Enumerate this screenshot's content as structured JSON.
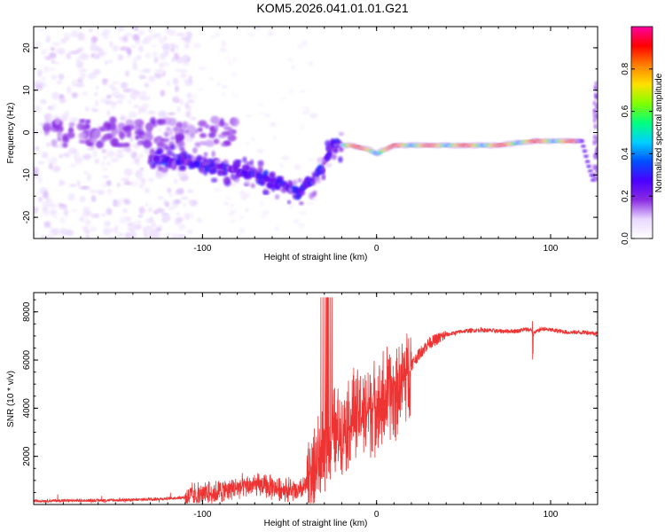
{
  "title": "KOM5.2026.041.01.01.G21",
  "chart_data": [
    {
      "type": "heatmap",
      "xlabel": "Height of straight line (km)",
      "ylabel": "Frequency (Hz)",
      "xlim": [
        -197,
        127
      ],
      "ylim": [
        -25,
        25
      ],
      "xticks": [
        -100,
        0,
        100
      ],
      "xtick_labels": [
        "-100",
        "0",
        "100"
      ],
      "yticks": [
        -20,
        -10,
        0,
        10,
        20
      ],
      "ytick_labels": [
        "-20",
        "-10",
        "0",
        "10",
        "20"
      ],
      "colorbar": {
        "label": "Normalized spectral amplitude",
        "range": [
          0,
          1
        ],
        "ticks": [
          0.0,
          0.2,
          0.4,
          0.6,
          0.8
        ],
        "tick_labels": [
          "0.0",
          "0.2",
          "0.4",
          "0.6",
          "0.8"
        ],
        "colormap": [
          "#ffffff",
          "#e9d8ff",
          "#8a2be2",
          "#4b00ff",
          "#0050ff",
          "#00d0ff",
          "#00ff80",
          "#80ff00",
          "#ffe000",
          "#ff8000",
          "#ff0000",
          "#ff00a0"
        ]
      },
      "ridge": {
        "x": [
          -130,
          -110,
          -90,
          -70,
          -55,
          -45,
          -35,
          -25,
          -15,
          -5,
          0,
          10,
          30,
          50,
          70,
          90,
          110,
          118,
          122,
          125
        ],
        "y": [
          -6,
          -7,
          -8,
          -10,
          -12,
          -14,
          -11,
          -3,
          -3,
          -4,
          -5,
          -3,
          -3,
          -3,
          -3,
          -2,
          -2,
          -2,
          -8,
          -12
        ]
      }
    },
    {
      "type": "line",
      "xlabel": "Height of straight line (km)",
      "ylabel": "SNR (10 * v/v)",
      "xlim": [
        -197,
        127
      ],
      "ylim": [
        0,
        8800
      ],
      "xticks": [
        -100,
        0,
        100
      ],
      "xtick_labels": [
        "-100",
        "0",
        "100"
      ],
      "yticks": [
        2000,
        4000,
        6000,
        8000
      ],
      "ytick_labels": [
        "2000",
        "4000",
        "6000",
        "8000"
      ],
      "color": "#ee3333",
      "envelope": {
        "x": [
          -197,
          -180,
          -160,
          -140,
          -120,
          -110,
          -100,
          -90,
          -80,
          -70,
          -60,
          -50,
          -45,
          -40,
          -35,
          -30,
          -25,
          -20,
          -15,
          -10,
          -5,
          0,
          5,
          10,
          15,
          20,
          25,
          30,
          40,
          50,
          60,
          70,
          80,
          88,
          90,
          95,
          100,
          110,
          120,
          127
        ],
        "y": [
          150,
          160,
          170,
          190,
          250,
          300,
          400,
          550,
          700,
          800,
          700,
          600,
          500,
          800,
          1500,
          2200,
          2800,
          3200,
          3500,
          3800,
          4000,
          4200,
          4400,
          4700,
          5200,
          5800,
          6300,
          6700,
          7050,
          7200,
          7250,
          7200,
          7200,
          7300,
          7100,
          7300,
          7250,
          7150,
          7150,
          7100
        ]
      }
    }
  ]
}
